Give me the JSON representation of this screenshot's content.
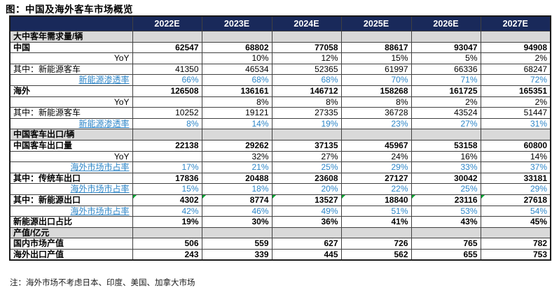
{
  "title": "图：中国及海外客车市场概览",
  "note": "注：海外市场不考虑日本、印度、美国、加拿大市场",
  "colors": {
    "header_bg": "#19295A",
    "header_text": "#FFFFFF",
    "section_bg": "#D9D9D9",
    "blue_text": "#2E86C8",
    "flag_green": "#00A933"
  },
  "table": {
    "columns": [
      "2022E",
      "2023E",
      "2024E",
      "2025E",
      "2026E",
      "2027E"
    ],
    "rows": [
      {
        "label": "大中客年需求量/辆",
        "type": "section",
        "values": [
          "",
          "",
          "",
          "",
          "",
          ""
        ]
      },
      {
        "label": "中国",
        "type": "bold",
        "values": [
          "62547",
          "68802",
          "77058",
          "88617",
          "93047",
          "94908"
        ]
      },
      {
        "label": "YoY",
        "type": "sub",
        "values": [
          "",
          "10%",
          "12%",
          "15%",
          "5%",
          "2%"
        ]
      },
      {
        "label": "其中：新能源客车",
        "type": "normal",
        "values": [
          "41350",
          "46534",
          "52365",
          "61997",
          "66336",
          "68247"
        ]
      },
      {
        "label": "新能源渗透率",
        "type": "blue",
        "values": [
          "66%",
          "68%",
          "68%",
          "70%",
          "71%",
          "72%"
        ]
      },
      {
        "label": "海外",
        "type": "bold",
        "divider": true,
        "values": [
          "126508",
          "136161",
          "146712",
          "158268",
          "161725",
          "165351"
        ]
      },
      {
        "label": "YoY",
        "type": "sub",
        "values": [
          "",
          "8%",
          "8%",
          "8%",
          "2%",
          "2%"
        ]
      },
      {
        "label": "其中：新能源客车",
        "type": "normal",
        "values": [
          "10252",
          "19121",
          "27335",
          "36728",
          "43524",
          "51447"
        ]
      },
      {
        "label": "新能源渗透率",
        "type": "blue",
        "values": [
          "8%",
          "14%",
          "19%",
          "23%",
          "27%",
          "31%"
        ]
      },
      {
        "label": "中国客车出口/辆",
        "type": "section",
        "divider": true,
        "values": [
          "",
          "",
          "",
          "",
          "",
          ""
        ]
      },
      {
        "label": "中国客车出口量",
        "type": "bold",
        "values": [
          "22138",
          "29262",
          "37135",
          "45967",
          "53158",
          "60800"
        ]
      },
      {
        "label": "YoY",
        "type": "sub",
        "values": [
          "",
          "32%",
          "27%",
          "24%",
          "16%",
          "14%"
        ]
      },
      {
        "label": "海外市场市占率",
        "type": "blue",
        "values": [
          "17%",
          "21%",
          "25%",
          "29%",
          "33%",
          "37%"
        ]
      },
      {
        "label": "其中：传统车出口",
        "type": "bold",
        "divider": true,
        "values": [
          "17836",
          "20488",
          "23608",
          "27127",
          "30042",
          "33181"
        ]
      },
      {
        "label": "海外市场市占率",
        "type": "blue",
        "values": [
          "15%",
          "18%",
          "20%",
          "22%",
          "25%",
          "29%"
        ]
      },
      {
        "label": "其中：新能源出口",
        "type": "bold",
        "divider": true,
        "marker": true,
        "values": [
          "4302",
          "8774",
          "13527",
          "18840",
          "23116",
          "27618"
        ]
      },
      {
        "label": "海外市场市占率",
        "type": "blue",
        "values": [
          "42%",
          "46%",
          "49%",
          "51%",
          "53%",
          "54%"
        ]
      },
      {
        "label": "新能源出口占比",
        "type": "bold",
        "divider": true,
        "values": [
          "19%",
          "30%",
          "36%",
          "41%",
          "43%",
          "45%"
        ]
      },
      {
        "label": "产值/亿元",
        "type": "section",
        "divider": true,
        "values": [
          "",
          "",
          "",
          "",
          "",
          ""
        ]
      },
      {
        "label": "国内市场产值",
        "type": "bold",
        "values": [
          "506",
          "559",
          "627",
          "726",
          "765",
          "782"
        ]
      },
      {
        "label": "海外出口产值",
        "type": "bold",
        "values": [
          "243",
          "339",
          "445",
          "562",
          "655",
          "753"
        ]
      }
    ]
  }
}
